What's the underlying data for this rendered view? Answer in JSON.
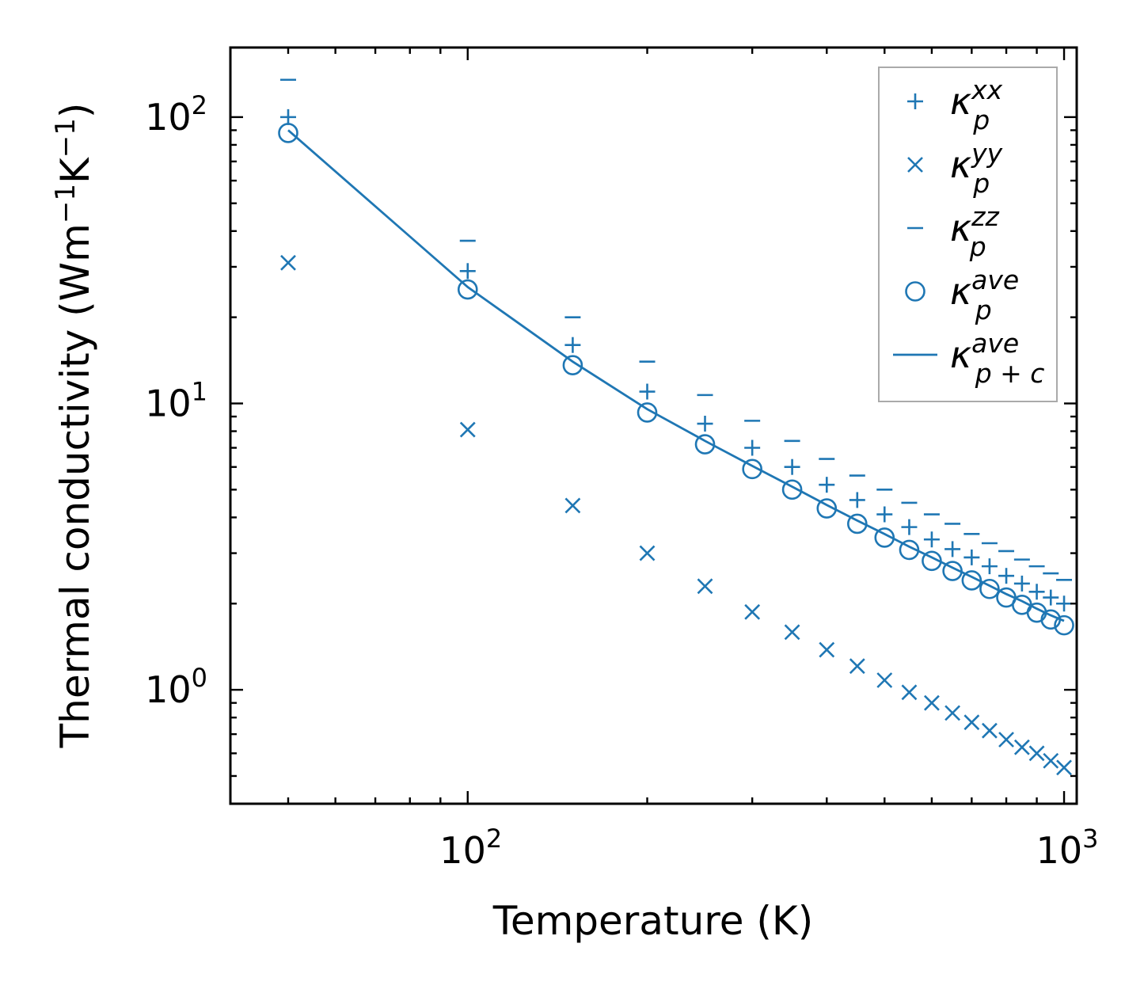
{
  "chart_data": {
    "type": "scatter",
    "title": "",
    "xlabel": "Temperature (K)",
    "ylabel": "Thermal conductivity (Wm",
    "ylabel_sup1": "−1",
    "ylabel_mid": "K",
    "ylabel_sup2": "−1",
    "ylabel_end": ")",
    "xscale": "log",
    "yscale": "log",
    "xlim": [
      40,
      1050
    ],
    "ylim": [
      0.4,
      175
    ],
    "xticks": [
      {
        "base": "10",
        "exp": "2",
        "value": 100
      },
      {
        "base": "10",
        "exp": "3",
        "value": 1000
      }
    ],
    "yticks": [
      {
        "base": "10",
        "exp": "0",
        "value": 1
      },
      {
        "base": "10",
        "exp": "1",
        "value": 10
      },
      {
        "base": "10",
        "exp": "2",
        "value": 100
      }
    ],
    "color": "#1f77b4",
    "x": [
      50,
      100,
      150,
      200,
      250,
      300,
      350,
      400,
      450,
      500,
      550,
      600,
      650,
      700,
      750,
      800,
      850,
      900,
      950,
      1000
    ],
    "series": [
      {
        "name": "xx",
        "marker": "plus",
        "values": [
          100,
          29,
          16,
          11,
          8.5,
          7.0,
          6.0,
          5.2,
          4.6,
          4.1,
          3.7,
          3.35,
          3.1,
          2.9,
          2.7,
          2.5,
          2.35,
          2.2,
          2.1,
          2.0
        ]
      },
      {
        "name": "yy",
        "marker": "x",
        "values": [
          31,
          8.1,
          4.4,
          3.0,
          2.3,
          1.87,
          1.59,
          1.38,
          1.21,
          1.08,
          0.98,
          0.9,
          0.83,
          0.77,
          0.72,
          0.67,
          0.63,
          0.6,
          0.565,
          0.535
        ]
      },
      {
        "name": "zz",
        "marker": "dash",
        "values": [
          135,
          37,
          20,
          14,
          10.7,
          8.7,
          7.4,
          6.4,
          5.6,
          5.0,
          4.5,
          4.1,
          3.8,
          3.5,
          3.25,
          3.05,
          2.85,
          2.7,
          2.55,
          2.42
        ]
      },
      {
        "name": "ave",
        "marker": "circle",
        "values": [
          88,
          25,
          13.6,
          9.3,
          7.2,
          5.9,
          5.0,
          4.3,
          3.8,
          3.4,
          3.08,
          2.82,
          2.6,
          2.41,
          2.25,
          2.1,
          1.98,
          1.86,
          1.76,
          1.68
        ]
      },
      {
        "name": "p+c",
        "marker": "line",
        "values": [
          90,
          25.5,
          14.0,
          9.55,
          7.4,
          6.05,
          5.12,
          4.42,
          3.9,
          3.5,
          3.16,
          2.9,
          2.67,
          2.48,
          2.31,
          2.16,
          2.04,
          1.92,
          1.82,
          1.74
        ]
      }
    ],
    "legend": {
      "position": "top-right",
      "entries": [
        {
          "base": "κ",
          "sup": "xx",
          "sub": "p",
          "marker": "plus"
        },
        {
          "base": "κ",
          "sup": "yy",
          "sub": "p",
          "marker": "x"
        },
        {
          "base": "κ",
          "sup": "zz",
          "sub": "p",
          "marker": "dash"
        },
        {
          "base": "κ",
          "sup": "ave",
          "sub": "p",
          "marker": "circle"
        },
        {
          "base": "κ",
          "sup": "ave",
          "sub": "p + c",
          "marker": "line"
        }
      ]
    }
  }
}
